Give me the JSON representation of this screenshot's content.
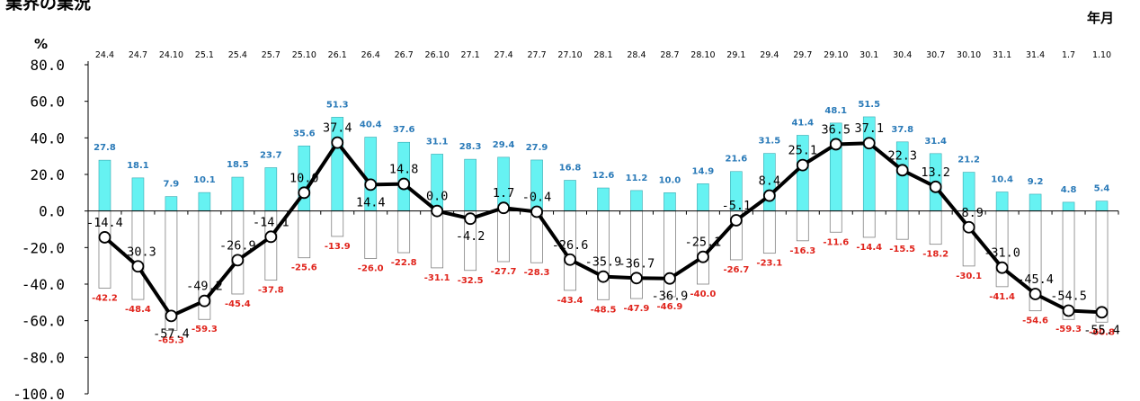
{
  "page_title": "業界の業況",
  "chart_data": {
    "type": "bar",
    "ylabel": "%",
    "xlabel": "年月",
    "ylim": [
      -100,
      80
    ],
    "y_ticks": [
      "80.0",
      "60.0",
      "40.0",
      "20.0",
      "0.0",
      "-20.0",
      "-40.0",
      "-60.0",
      "-80.0",
      "-100.0"
    ],
    "categories": [
      "24.4",
      "24.7",
      "24.10",
      "25.1",
      "25.4",
      "25.7",
      "25.10",
      "26.1",
      "26.4",
      "26.7",
      "26.10",
      "27.1",
      "27.4",
      "27.7",
      "27.10",
      "28.1",
      "28.4",
      "28.7",
      "28.10",
      "29.1",
      "29.4",
      "29.7",
      "29.10",
      "30.1",
      "30.4",
      "30.7",
      "30.10",
      "31.1",
      "31.4",
      "1.7",
      "1.10"
    ],
    "series": [
      {
        "kind": "positive-bar",
        "color": "#66f2f2",
        "values": [
          27.8,
          18.1,
          7.9,
          10.1,
          18.5,
          23.7,
          35.6,
          51.3,
          40.4,
          37.6,
          31.1,
          28.3,
          29.4,
          27.9,
          16.8,
          12.6,
          11.2,
          10.0,
          14.9,
          21.6,
          31.5,
          41.4,
          48.1,
          51.5,
          37.8,
          31.4,
          21.2,
          10.4,
          9.2,
          4.8,
          5.4
        ],
        "labels": [
          "27.8",
          "18.1",
          "7.9",
          "10.1",
          "18.5",
          "23.7",
          "35.6",
          "51.3",
          "40.4",
          "37.6",
          "31.1",
          "28.3",
          "29.4",
          "27.9",
          "16.8",
          "12.6",
          "11.2",
          "10.0",
          "14.9",
          "21.6",
          "31.5",
          "41.4",
          "48.1",
          "51.5",
          "37.8",
          "31.4",
          "21.2",
          "10.4",
          "9.2",
          "4.8",
          "5.4"
        ]
      },
      {
        "kind": "negative-bar",
        "color": "#ffffff",
        "values": [
          -42.2,
          -48.4,
          -65.3,
          -59.3,
          -45.4,
          -37.8,
          -25.6,
          -13.9,
          -26.0,
          -22.8,
          -31.1,
          -32.5,
          -27.7,
          -28.3,
          -43.4,
          -48.5,
          -47.9,
          -46.9,
          -40.0,
          -26.7,
          -23.1,
          -16.3,
          -11.6,
          -14.4,
          -15.5,
          -18.2,
          -30.1,
          -41.4,
          -54.6,
          -59.3,
          -60.8
        ],
        "labels": [
          "-42.2",
          "-48.4",
          "-65.3",
          "-59.3",
          "-45.4",
          "-37.8",
          "-25.6",
          "-13.9",
          "-26.0",
          "-22.8",
          "-31.1",
          "-32.5",
          "-27.7",
          "-28.3",
          "-43.4",
          "-48.5",
          "-47.9",
          "-46.9",
          "-40.0",
          "-26.7",
          "-23.1",
          "-16.3",
          "-11.6",
          "-14.4",
          "-15.5",
          "-18.2",
          "-30.1",
          "-41.4",
          "-54.6",
          "-59.3",
          "-60.8"
        ]
      },
      {
        "kind": "line",
        "color": "#000000",
        "values": [
          -14.4,
          -30.3,
          -57.4,
          -49.2,
          -26.9,
          -14.1,
          10.0,
          37.4,
          14.4,
          14.8,
          0.0,
          -4.2,
          1.7,
          -0.4,
          -26.6,
          -35.9,
          -36.7,
          -36.9,
          -25.1,
          -5.1,
          8.4,
          25.1,
          36.5,
          37.1,
          22.3,
          13.2,
          -8.9,
          -31.0,
          -45.4,
          -54.5,
          -55.4
        ],
        "labels": [
          "-14.4",
          "-30.3",
          "-57.4",
          "-49.2",
          "-26.9",
          "-14.1",
          "10.0",
          "37.4",
          "14.4",
          "14.8",
          "0.0",
          "-4.2",
          "1.7",
          "-0.4",
          "-26.6",
          "-35.9",
          "-36.7",
          "-36.9",
          "-25.1",
          "-5.1",
          "8.4",
          "25.1",
          "36.5",
          "37.1",
          "22.3",
          "13.2",
          "-8.9",
          "-31.0",
          "-45.4",
          "-54.5",
          "-55.4"
        ]
      }
    ]
  }
}
